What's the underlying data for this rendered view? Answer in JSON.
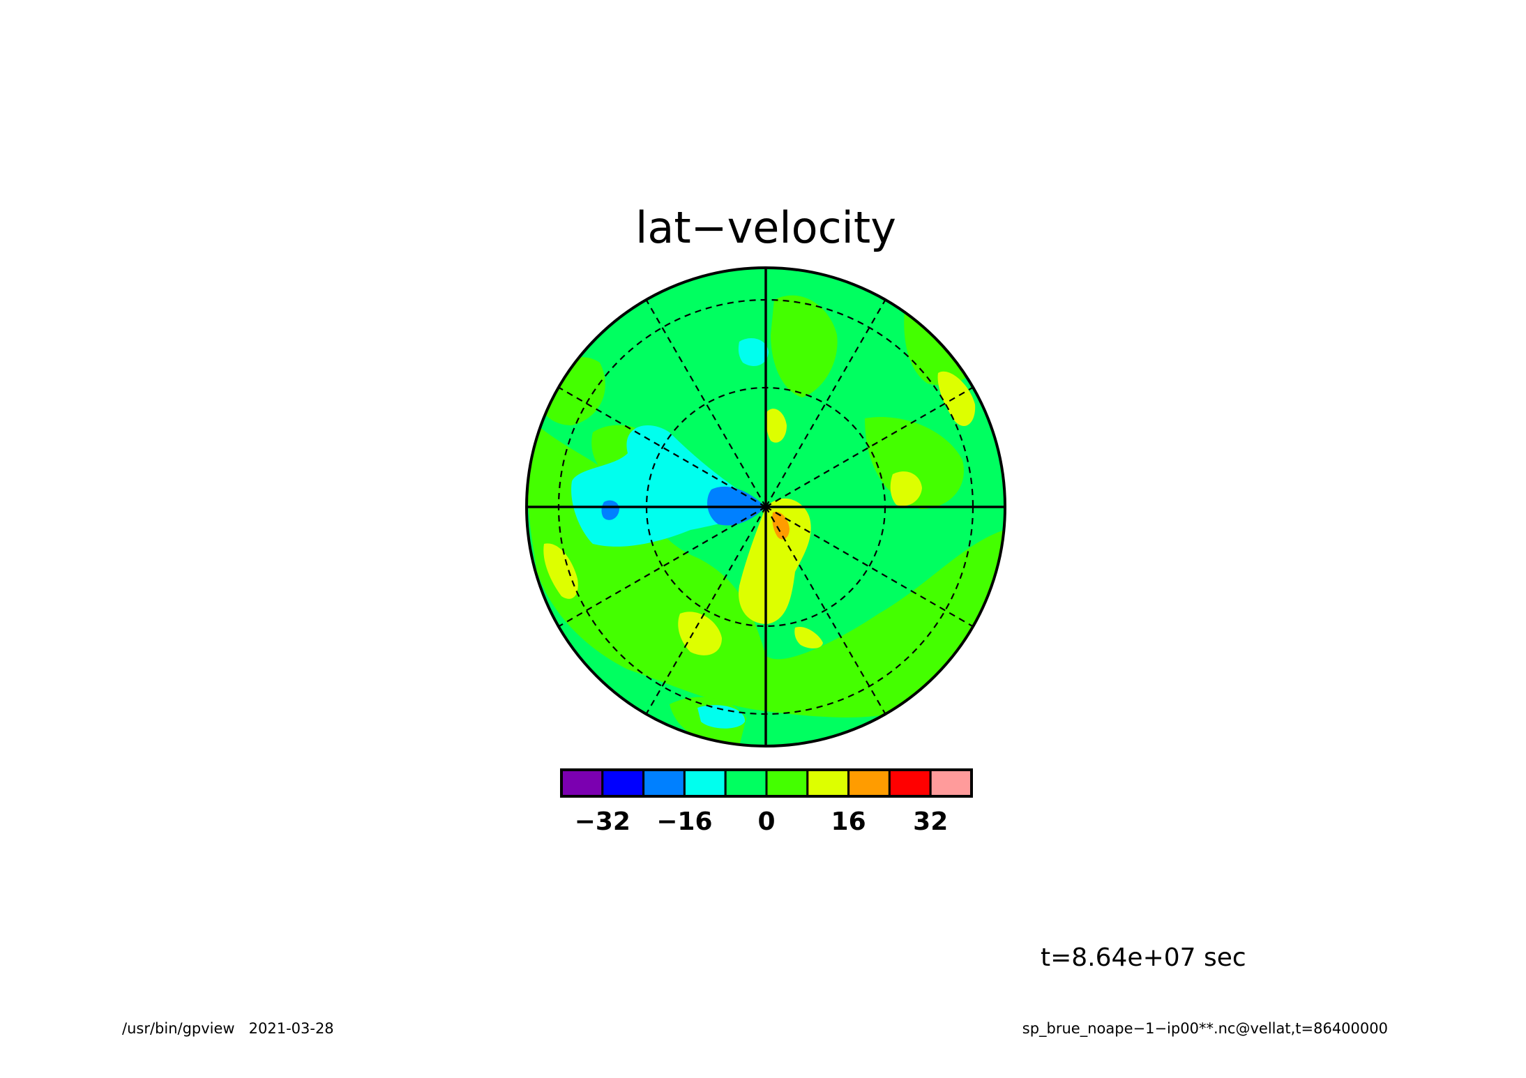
{
  "chart_data": {
    "type": "heatmap",
    "projection": "polar-stereographic",
    "title": "lat−velocity",
    "grid": true,
    "colorbar": {
      "levels": [
        -40,
        -32,
        -24,
        -16,
        -8,
        0,
        8,
        16,
        24,
        32,
        40
      ],
      "colors": [
        "#7b00b0",
        "#0000ff",
        "#0080ff",
        "#00ffee",
        "#00ff60",
        "#44ff00",
        "#ddff00",
        "#ff9c00",
        "#ff0000",
        "#ff9b9b"
      ],
      "tick_values": [
        -32,
        -16,
        0,
        16,
        32
      ],
      "tick_labels": [
        "−32",
        "−16",
        "0",
        "16",
        "32"
      ]
    },
    "time_label": "t=8.64e+07 sec"
  },
  "footer": {
    "left": "/usr/bin/gpview   2021-03-28",
    "right": "sp_brue_noape−1−ip00**.nc@vellat,t=86400000"
  }
}
